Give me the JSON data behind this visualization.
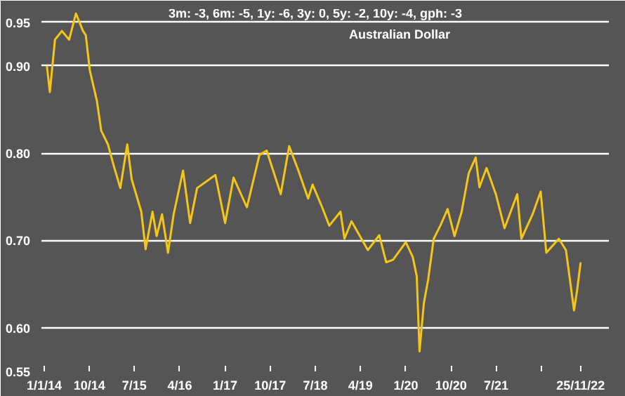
{
  "chart_data": {
    "type": "line",
    "title": "Australian Dollar",
    "subtitle": "3m: -3, 6m: -5, 1y: -6, 3y: 0, 5y: -2, 10y: -4, gph: -3",
    "x": [
      "2014-01-17",
      "2014-02-04",
      "2014-03-07",
      "2014-04-18",
      "2014-06-01",
      "2014-07-12",
      "2014-08-24",
      "2014-09-10",
      "2014-10-04",
      "2014-11-16",
      "2014-12-12",
      "2015-01-22",
      "2015-02-27",
      "2015-04-07",
      "2015-05-19",
      "2015-06-15",
      "2015-08-12",
      "2015-09-07",
      "2015-10-19",
      "2015-11-13",
      "2015-12-16",
      "2016-01-21",
      "2016-02-24",
      "2016-04-21",
      "2016-06-03",
      "2016-07-15",
      "2016-11-03",
      "2017-01-01",
      "2017-02-21",
      "2017-05-13",
      "2017-07-28",
      "2017-09-10",
      "2017-12-04",
      "2018-01-24",
      "2018-03-21",
      "2018-05-19",
      "2018-06-15",
      "2018-08-12",
      "2018-09-24",
      "2018-12-01",
      "2018-12-25",
      "2019-02-06",
      "2019-05-16",
      "2019-07-24",
      "2019-09-04",
      "2019-10-16",
      "2020-01-01",
      "2020-02-12",
      "2020-03-07",
      "2020-03-24",
      "2020-04-19",
      "2020-05-15",
      "2020-06-18",
      "2020-07-28",
      "2020-09-10",
      "2020-10-22",
      "2020-12-04",
      "2021-01-16",
      "2021-02-27",
      "2021-03-22",
      "2021-05-04",
      "2021-07-01",
      "2021-08-21",
      "2021-11-06",
      "2021-12-01",
      "2022-02-07",
      "2022-03-28",
      "2022-05-01",
      "2022-07-16",
      "2022-08-28",
      "2022-10-16",
      "2022-11-03",
      "2022-11-25"
    ],
    "series": [
      {
        "color": "#f5c518",
        "values": [
          0.9,
          0.87,
          0.93,
          0.94,
          0.93,
          0.96,
          0.94,
          0.935,
          0.895,
          0.86,
          0.826,
          0.81,
          0.785,
          0.76,
          0.81,
          0.77,
          0.733,
          0.69,
          0.733,
          0.705,
          0.73,
          0.686,
          0.73,
          0.78,
          0.72,
          0.76,
          0.775,
          0.72,
          0.772,
          0.738,
          0.798,
          0.803,
          0.753,
          0.808,
          0.78,
          0.748,
          0.764,
          0.738,
          0.717,
          0.733,
          0.702,
          0.722,
          0.689,
          0.706,
          0.675,
          0.678,
          0.698,
          0.681,
          0.659,
          0.573,
          0.628,
          0.655,
          0.702,
          0.717,
          0.736,
          0.705,
          0.733,
          0.777,
          0.795,
          0.761,
          0.783,
          0.752,
          0.714,
          0.753,
          0.702,
          0.73,
          0.756,
          0.686,
          0.702,
          0.689,
          0.62,
          0.642,
          0.675
        ]
      }
    ],
    "xlim": [
      "2013-12-15",
      "2023-05-15"
    ],
    "xticks": [
      {
        "value": "2014-01-01",
        "label": "1/1/14"
      },
      {
        "value": "2014-10-01",
        "label": "10/14"
      },
      {
        "value": "2015-07-01",
        "label": "7/15"
      },
      {
        "value": "2016-04-01",
        "label": "4/16"
      },
      {
        "value": "2017-01-01",
        "label": "1/17"
      },
      {
        "value": "2017-10-01",
        "label": "10/17"
      },
      {
        "value": "2018-07-01",
        "label": "7/18"
      },
      {
        "value": "2019-04-01",
        "label": "4/19"
      },
      {
        "value": "2020-01-01",
        "label": "1/20"
      },
      {
        "value": "2020-10-01",
        "label": "10/20"
      },
      {
        "value": "2021-07-01",
        "label": "7/21"
      },
      {
        "value": "2022-04-01",
        "label": null
      },
      {
        "value": "2022-11-25",
        "label": "25/11/22"
      }
    ],
    "ylim": [
      0.55,
      0.965
    ],
    "yticks": [
      {
        "value": 0.55,
        "label": "0.55"
      },
      {
        "value": 0.6,
        "label": "0.60"
      },
      {
        "value": 0.7,
        "label": "0.70"
      },
      {
        "value": 0.8,
        "label": "0.80"
      },
      {
        "value": 0.9,
        "label": "0.90"
      },
      {
        "value": 0.95,
        "label": "0.95"
      }
    ],
    "grid": "y",
    "marker": "none",
    "line_style": "solid"
  }
}
